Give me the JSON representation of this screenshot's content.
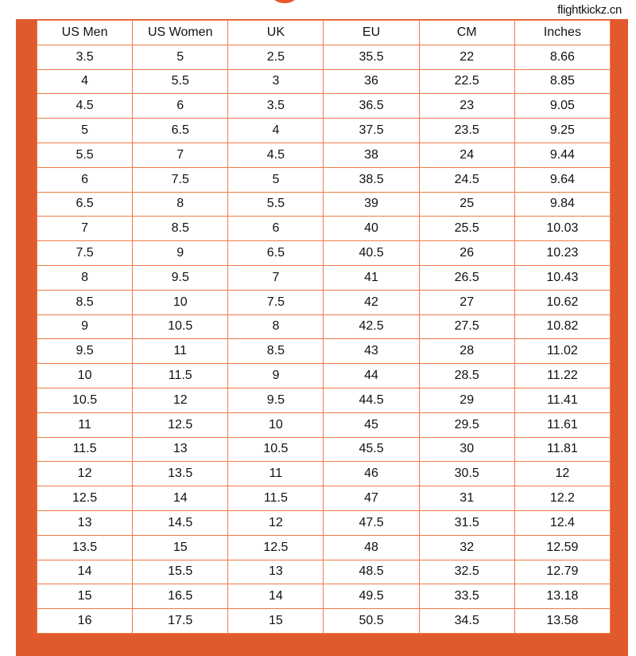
{
  "brand": "flightkickz.cn",
  "colors": {
    "frame": "#e05a2e",
    "grid": "#f07a45"
  },
  "headers": [
    "US Men",
    "US Women",
    "UK",
    "EU",
    "CM",
    "Inches"
  ],
  "rows": [
    [
      "3.5",
      "5",
      "2.5",
      "35.5",
      "22",
      "8.66"
    ],
    [
      "4",
      "5.5",
      "3",
      "36",
      "22.5",
      "8.85"
    ],
    [
      "4.5",
      "6",
      "3.5",
      "36.5",
      "23",
      "9.05"
    ],
    [
      "5",
      "6.5",
      "4",
      "37.5",
      "23.5",
      "9.25"
    ],
    [
      "5.5",
      "7",
      "4.5",
      "38",
      "24",
      "9.44"
    ],
    [
      "6",
      "7.5",
      "5",
      "38.5",
      "24.5",
      "9.64"
    ],
    [
      "6.5",
      "8",
      "5.5",
      "39",
      "25",
      "9.84"
    ],
    [
      "7",
      "8.5",
      "6",
      "40",
      "25.5",
      "10.03"
    ],
    [
      "7.5",
      "9",
      "6.5",
      "40.5",
      "26",
      "10.23"
    ],
    [
      "8",
      "9.5",
      "7",
      "41",
      "26.5",
      "10.43"
    ],
    [
      "8.5",
      "10",
      "7.5",
      "42",
      "27",
      "10.62"
    ],
    [
      "9",
      "10.5",
      "8",
      "42.5",
      "27.5",
      "10.82"
    ],
    [
      "9.5",
      "11",
      "8.5",
      "43",
      "28",
      "11.02"
    ],
    [
      "10",
      "11.5",
      "9",
      "44",
      "28.5",
      "11.22"
    ],
    [
      "10.5",
      "12",
      "9.5",
      "44.5",
      "29",
      "11.41"
    ],
    [
      "11",
      "12.5",
      "10",
      "45",
      "29.5",
      "11.61"
    ],
    [
      "11.5",
      "13",
      "10.5",
      "45.5",
      "30",
      "11.81"
    ],
    [
      "12",
      "13.5",
      "11",
      "46",
      "30.5",
      "12"
    ],
    [
      "12.5",
      "14",
      "11.5",
      "47",
      "31",
      "12.2"
    ],
    [
      "13",
      "14.5",
      "12",
      "47.5",
      "31.5",
      "12.4"
    ],
    [
      "13.5",
      "15",
      "12.5",
      "48",
      "32",
      "12.59"
    ],
    [
      "14",
      "15.5",
      "13",
      "48.5",
      "32.5",
      "12.79"
    ],
    [
      "15",
      "16.5",
      "14",
      "49.5",
      "33.5",
      "13.18"
    ],
    [
      "16",
      "17.5",
      "15",
      "50.5",
      "34.5",
      "13.58"
    ]
  ]
}
